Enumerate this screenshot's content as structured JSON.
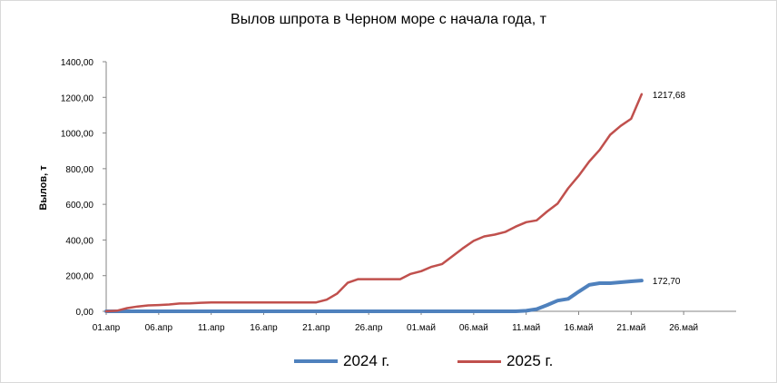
{
  "colors": {
    "s2024": "#4f81bd",
    "s2025": "#c0504d",
    "axis": "#868686"
  },
  "chart_data": {
    "type": "line",
    "title": "Вылов шпрота в Черном море с начала года, т",
    "ylabel": "Вылов, т",
    "xlabel": "",
    "ylim": [
      0,
      1400
    ],
    "xlim": [
      "2025-04-01",
      "2025-05-31"
    ],
    "x_ticks": [
      "01.апр",
      "06.апр",
      "11.апр",
      "16.апр",
      "21.апр",
      "26.апр",
      "01.май",
      "06.май",
      "11.май",
      "16.май",
      "21.май",
      "26.май"
    ],
    "y_ticks": [
      "0,00",
      "200,00",
      "400,00",
      "600,00",
      "800,00",
      "1000,00",
      "1200,00",
      "1400,00"
    ],
    "grid": false,
    "legend_position": "bottom",
    "series": [
      {
        "name": "2024 г.",
        "color": "#4f81bd",
        "end_label": "172,70",
        "points": [
          [
            "2025-04-01",
            0
          ],
          [
            "2025-05-10",
            0
          ],
          [
            "2025-05-11",
            3
          ],
          [
            "2025-05-12",
            12
          ],
          [
            "2025-05-13",
            35
          ],
          [
            "2025-05-14",
            60
          ],
          [
            "2025-05-15",
            70
          ],
          [
            "2025-05-16",
            110
          ],
          [
            "2025-05-17",
            148
          ],
          [
            "2025-05-18",
            158
          ],
          [
            "2025-05-19",
            158
          ],
          [
            "2025-05-20",
            163
          ],
          [
            "2025-05-21",
            168
          ],
          [
            "2025-05-22",
            172.7
          ]
        ]
      },
      {
        "name": "2025 г.",
        "color": "#c0504d",
        "end_label": "1217,68",
        "points": [
          [
            "2025-04-01",
            0
          ],
          [
            "2025-04-02",
            3
          ],
          [
            "2025-04-03",
            18
          ],
          [
            "2025-04-04",
            27
          ],
          [
            "2025-04-05",
            33
          ],
          [
            "2025-04-06",
            35
          ],
          [
            "2025-04-07",
            38
          ],
          [
            "2025-04-08",
            44
          ],
          [
            "2025-04-09",
            45
          ],
          [
            "2025-04-10",
            48
          ],
          [
            "2025-04-11",
            50
          ],
          [
            "2025-04-20",
            50
          ],
          [
            "2025-04-21",
            50
          ],
          [
            "2025-04-22",
            65
          ],
          [
            "2025-04-23",
            100
          ],
          [
            "2025-04-24",
            160
          ],
          [
            "2025-04-25",
            180
          ],
          [
            "2025-04-26",
            180
          ],
          [
            "2025-04-27",
            180
          ],
          [
            "2025-04-28",
            180
          ],
          [
            "2025-04-29",
            180
          ],
          [
            "2025-04-30",
            210
          ],
          [
            "2025-05-01",
            225
          ],
          [
            "2025-05-02",
            250
          ],
          [
            "2025-05-03",
            265
          ],
          [
            "2025-05-04",
            310
          ],
          [
            "2025-05-05",
            355
          ],
          [
            "2025-05-06",
            395
          ],
          [
            "2025-05-07",
            420
          ],
          [
            "2025-05-08",
            430
          ],
          [
            "2025-05-09",
            445
          ],
          [
            "2025-05-10",
            475
          ],
          [
            "2025-05-11",
            500
          ],
          [
            "2025-05-12",
            510
          ],
          [
            "2025-05-13",
            560
          ],
          [
            "2025-05-14",
            605
          ],
          [
            "2025-05-15",
            690
          ],
          [
            "2025-05-16",
            760
          ],
          [
            "2025-05-17",
            840
          ],
          [
            "2025-05-18",
            905
          ],
          [
            "2025-05-19",
            990
          ],
          [
            "2025-05-20",
            1040
          ],
          [
            "2025-05-21",
            1080
          ],
          [
            "2025-05-22",
            1217.68
          ]
        ]
      }
    ]
  }
}
